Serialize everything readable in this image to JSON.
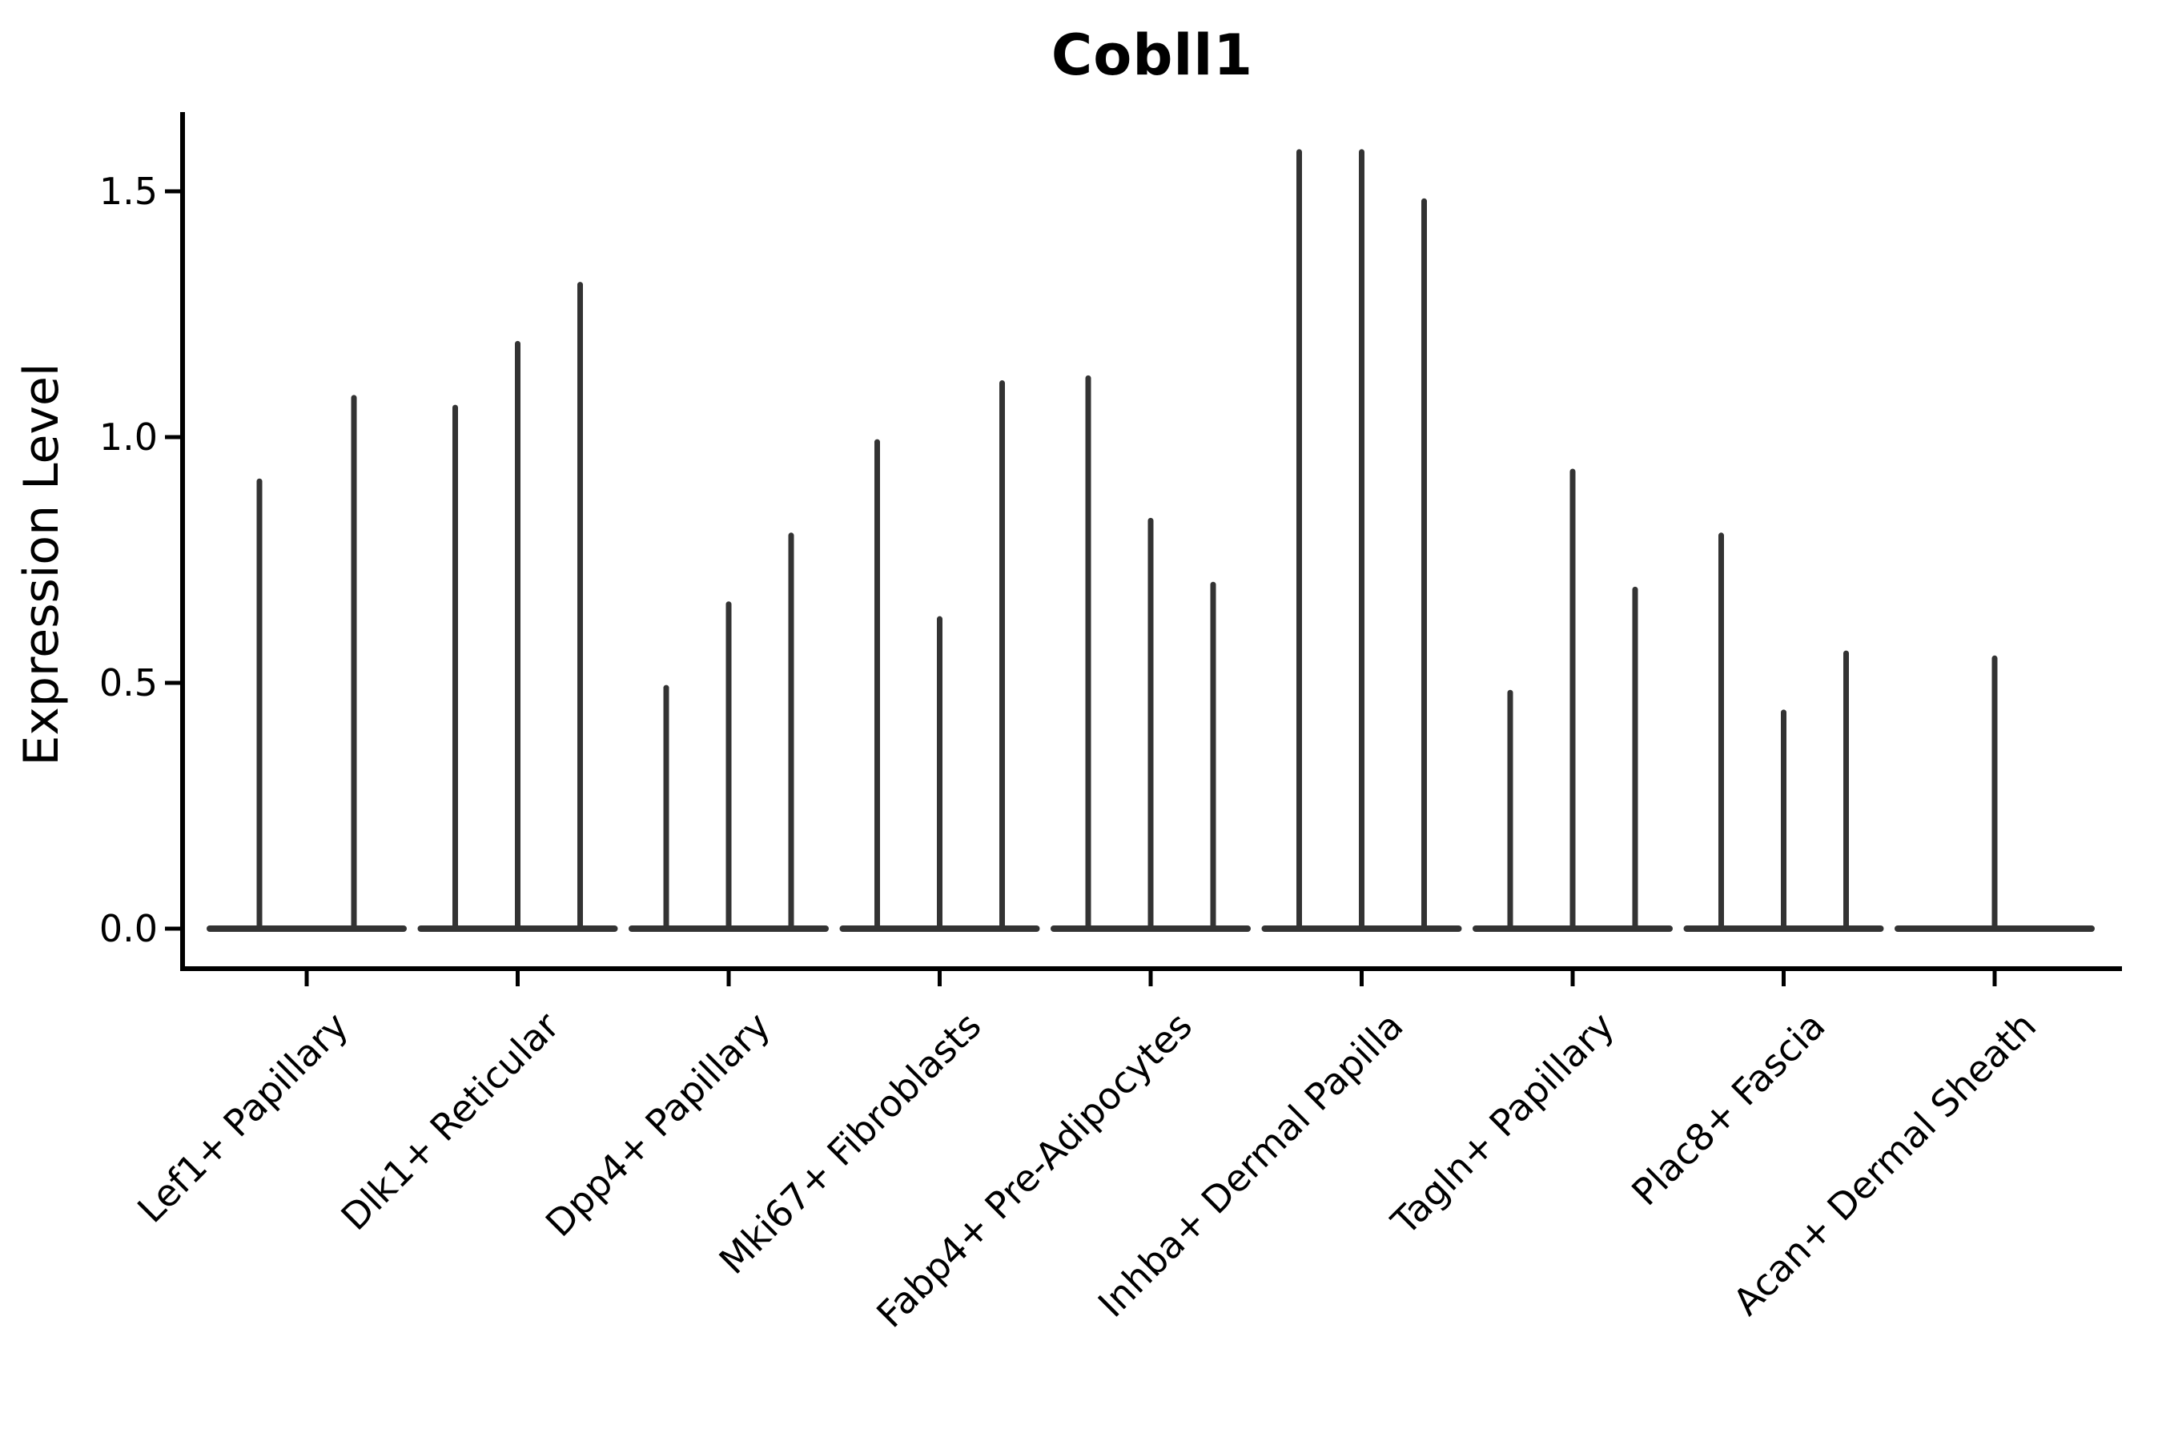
{
  "chart_data": {
    "type": "violin",
    "title": "Cobll1",
    "ylabel": "Expression Level",
    "xlabel": "",
    "yticks": [
      "0.0",
      "0.5",
      "1.0",
      "1.5"
    ],
    "ylim": [
      0,
      1.66
    ],
    "grid": false,
    "legend": "none",
    "description": "Collapsed violins: bulk of cells at expression 0 (flat baseline), thin spike up to the max expression value per violin; 2 violins in first group, 3 in middle groups, 1 in last group",
    "categories": [
      "Lef1+ Papillary",
      "Dlk1+ Reticular",
      "Dpp4+ Papillary",
      "Mki67+ Fibroblasts",
      "Fabp4+ Pre-Adipocytes",
      "Inhba+ Dermal Papilla",
      "Tagln+ Papillary",
      "Plac8+ Fascia",
      "Acan+ Dermal Sheath"
    ],
    "series": [
      {
        "category": "Lef1+ Papillary",
        "violin_max_values": [
          0.91,
          1.08
        ]
      },
      {
        "category": "Dlk1+ Reticular",
        "violin_max_values": [
          1.06,
          1.19,
          1.31
        ]
      },
      {
        "category": "Dpp4+ Papillary",
        "violin_max_values": [
          0.49,
          0.66,
          0.8
        ]
      },
      {
        "category": "Mki67+ Fibroblasts",
        "violin_max_values": [
          0.99,
          0.63,
          1.11
        ]
      },
      {
        "category": "Fabp4+ Pre-Adipocytes",
        "violin_max_values": [
          1.12,
          0.83,
          0.7
        ]
      },
      {
        "category": "Inhba+ Dermal Papilla",
        "violin_max_values": [
          1.58,
          1.58,
          1.48
        ]
      },
      {
        "category": "Tagln+ Papillary",
        "violin_max_values": [
          0.48,
          0.93,
          0.69
        ]
      },
      {
        "category": "Plac8+ Fascia",
        "violin_max_values": [
          0.8,
          0.44,
          0.56
        ]
      },
      {
        "category": "Acan+ Dermal Sheath",
        "violin_max_values": [
          0.55
        ]
      }
    ],
    "colors": {
      "violin": "#333333",
      "axis": "#000000",
      "background": "#ffffff"
    }
  }
}
